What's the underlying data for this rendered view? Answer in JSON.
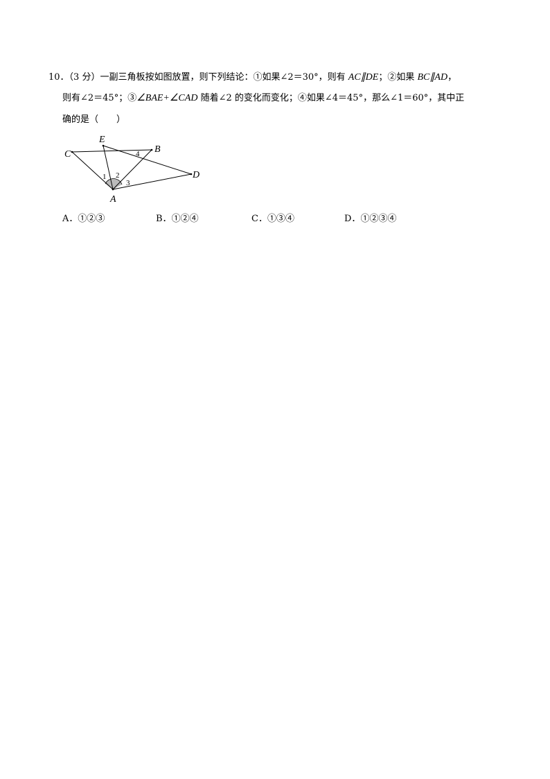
{
  "question": {
    "number": "10．",
    "score": "（3 分）",
    "line1_a": "一副三角板按如图放置，则下列结论：①如果∠2＝30°，则有 ",
    "ac_de": "AC∥DE",
    "line1_b": "；②如果 ",
    "bc_ad": "BC∥AD",
    "line1_c": "，",
    "line2_a": "则有∠2＝45°；③",
    "bae_cad": "∠BAE+∠CAD",
    "line2_b": " 随着∠2 的变化而变化；④如果∠4＝45°，那么∠1＝60°，其中正",
    "line3": "确的是（　　）"
  },
  "figure": {
    "points": {
      "A": "A",
      "B": "B",
      "C": "C",
      "D": "D",
      "E": "E"
    },
    "angles": [
      "1",
      "2",
      "3",
      "4"
    ]
  },
  "options": [
    {
      "letter": "A．",
      "text": "①②③"
    },
    {
      "letter": "B．",
      "text": "①②④"
    },
    {
      "letter": "C．",
      "text": "①③④"
    },
    {
      "letter": "D．",
      "text": "①②③④"
    }
  ]
}
